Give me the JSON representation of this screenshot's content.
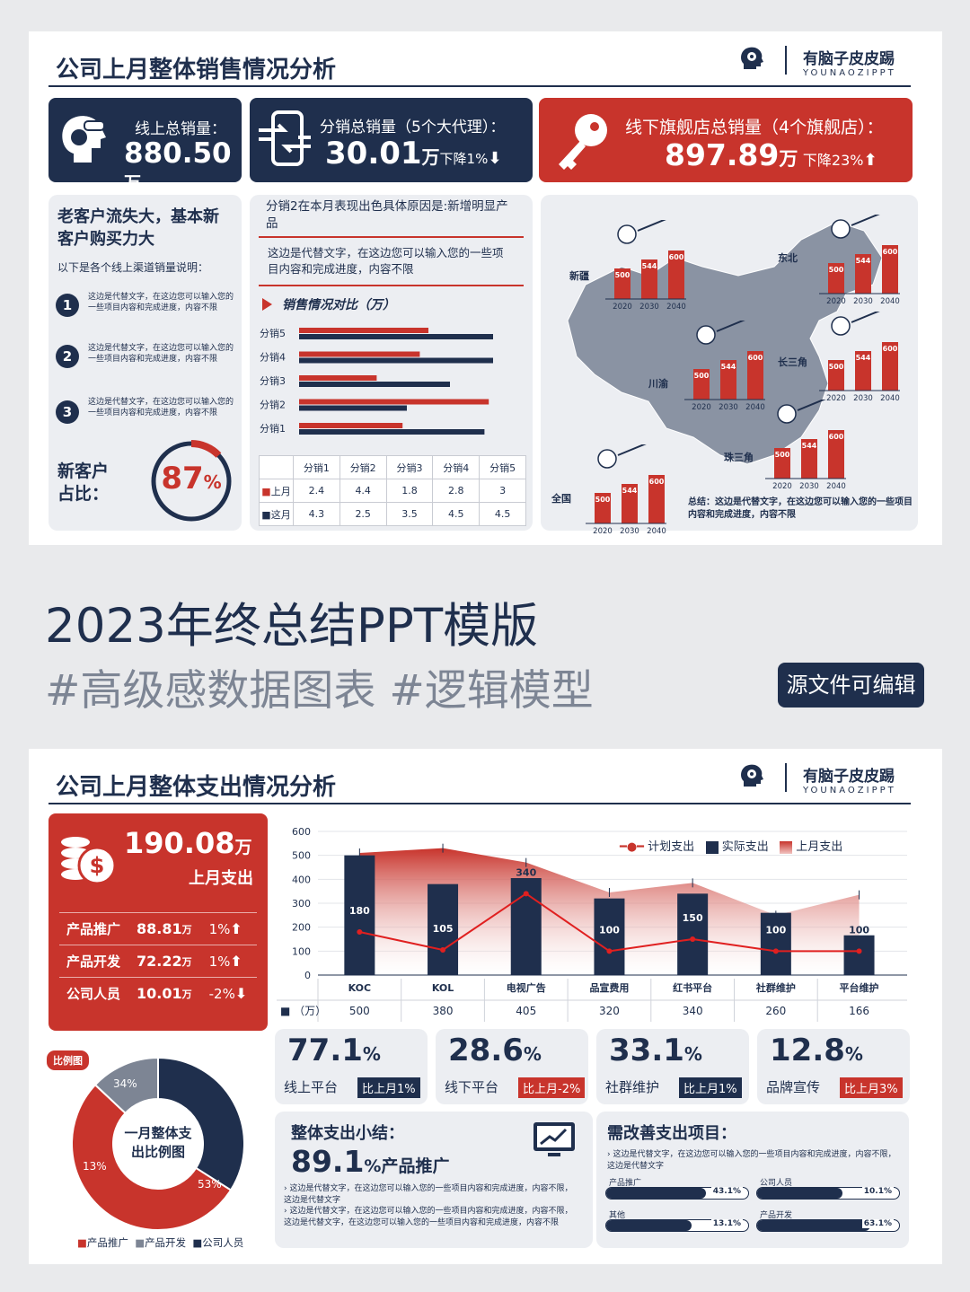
{
  "top": {
    "title": "公司上月整体销售情况分析",
    "brand_cn": "有脑子皮皮踢",
    "brand_en": "YOUNAOZIPPT",
    "k1_label": "线上总销量：",
    "k1_value": "880.50",
    "k1_unit": "万",
    "k2_label": "分销总销量（5个大代理）：",
    "k2_value": "30.01",
    "k2_unit": "万",
    "k2_trend": "下降1%",
    "k3_label": "线下旗舰店总销量（4个旗舰店）：",
    "k3_value": "897.89",
    "k3_unit": "万",
    "k3_trend": "下降23%",
    "left_head": "老客户流失大，基本新客户购买力大",
    "left_sub": "以下是各个线上渠道销量说明：",
    "items": [
      "这边是代替文字，在这边您可以输入您的一些项目内容和完成进度，内容不限",
      "这边是代替文字，在这边您可以输入您的一些项目内容和完成进度，内容不限",
      "这边是代替文字，在这边您可以输入您的一些项目内容和完成进度，内容不限"
    ],
    "nums": [
      "1",
      "2",
      "3"
    ],
    "new_label": "新客户占比：",
    "new_pct": "87",
    "pct_sign": "%",
    "mid_head": "分销2在本月表现出色具体原因是:新增明显产品",
    "mid_text": "这边是代替文字，在这边您可以输入您的一些项目内容和完成进度，内容不限",
    "cmp_title": "销售情况对比（万）",
    "map_note": "总结：这边是代替文字，在这边您可以输入您的一些项目内容和完成进度，内容不限",
    "map_regions": [
      "新疆",
      "东北",
      "川渝",
      "长三角",
      "珠三角",
      "全国"
    ],
    "map_years": [
      "2020",
      "2030",
      "2040"
    ],
    "map_vals": [
      "500",
      "544",
      "600"
    ]
  },
  "chart_data": [
    {
      "type": "bar",
      "title": "销售情况对比（万）",
      "categories": [
        "分销1",
        "分销2",
        "分销3",
        "分销4",
        "分销5"
      ],
      "series": [
        {
          "name": "上月",
          "values": [
            2.4,
            4.4,
            1.8,
            2.8,
            3
          ]
        },
        {
          "name": "这月",
          "values": [
            4.3,
            2.5,
            3.5,
            4.5,
            4.5
          ]
        }
      ]
    },
    {
      "type": "bar",
      "categories": [
        "KOC",
        "KOL",
        "电视广告",
        "品宣费用",
        "红书平台",
        "社群维护",
        "平台维护"
      ],
      "ylim": [
        0,
        600
      ],
      "yticks": [
        "600",
        "500",
        "400",
        "300",
        "200",
        "100",
        "0"
      ],
      "series": [
        {
          "name": "实际支出",
          "values": [
            500,
            380,
            405,
            320,
            340,
            260,
            166
          ]
        },
        {
          "name": "计划支出",
          "values": [
            180,
            105,
            340,
            100,
            150,
            100,
            100
          ]
        },
        {
          "name": "上月支出",
          "values": [
            510,
            530,
            470,
            345,
            385,
            250,
            335
          ]
        }
      ],
      "unit": "（万）"
    },
    {
      "type": "pie",
      "title": "一月整体支出比例图",
      "categories": [
        "产品推广",
        "产品开发",
        "公司人员"
      ],
      "values": [
        53,
        13,
        34
      ]
    }
  ],
  "banner": {
    "line1": "2023年终总结PPT模版",
    "line2": "#高级感数据图表 #逻辑模型",
    "tag": "源文件可编辑"
  },
  "bottom": {
    "title": "公司上月整体支出情况分析",
    "total": "190.08",
    "total_unit": "万",
    "total_label": "上月支出",
    "rows": [
      {
        "name": "产品推广",
        "val": "88.81",
        "unit": "万",
        "chg": "1%"
      },
      {
        "name": "产品开发",
        "val": "72.22",
        "unit": "万",
        "chg": "1%"
      },
      {
        "name": "公司人员",
        "val": "10.01",
        "unit": "万",
        "chg": "-2%"
      }
    ],
    "pie_tag": "比例图",
    "pie_pcts": [
      "53%",
      "13%",
      "34%"
    ],
    "stats": [
      {
        "v": "77.1",
        "name": "线上平台",
        "tag": "比上月1%"
      },
      {
        "v": "28.6",
        "name": "线下平台",
        "tag": "比上月-2%"
      },
      {
        "v": "33.1",
        "name": "社群维护",
        "tag": "比上月1%"
      },
      {
        "v": "12.8",
        "name": "品牌宣传",
        "tag": "比上月3%"
      }
    ],
    "sum_title": "整体支出小结：",
    "sum_value": "89.1",
    "sum_suffix": "%产品推广",
    "sum_t1": "这边是代替文字，在这边您可以输入您的一些项目内容和完成进度，内容不限，这边是代替文字",
    "sum_t2": "这边是代替文字，在这边您可以输入您的一些项目内容和完成进度，内容不限，这边是代替文字，在这边您可以输入您的一些项目内容和完成进度，内容不限",
    "imp_title": "需改善支出项目：",
    "imp_text": "这边是代替文字，在这边您可以输入您的一些项目内容和完成进度，内容不限，这边是代替文字",
    "progress": [
      {
        "name": "产品推广",
        "v": 0.431,
        "label": "43.1%"
      },
      {
        "name": "公司人员",
        "v": 0.101,
        "label": "10.1%"
      },
      {
        "name": "其他",
        "v": 0.131,
        "label": "13.1%"
      },
      {
        "name": "产品开发",
        "v": 0.631,
        "label": "63.1%"
      }
    ]
  }
}
